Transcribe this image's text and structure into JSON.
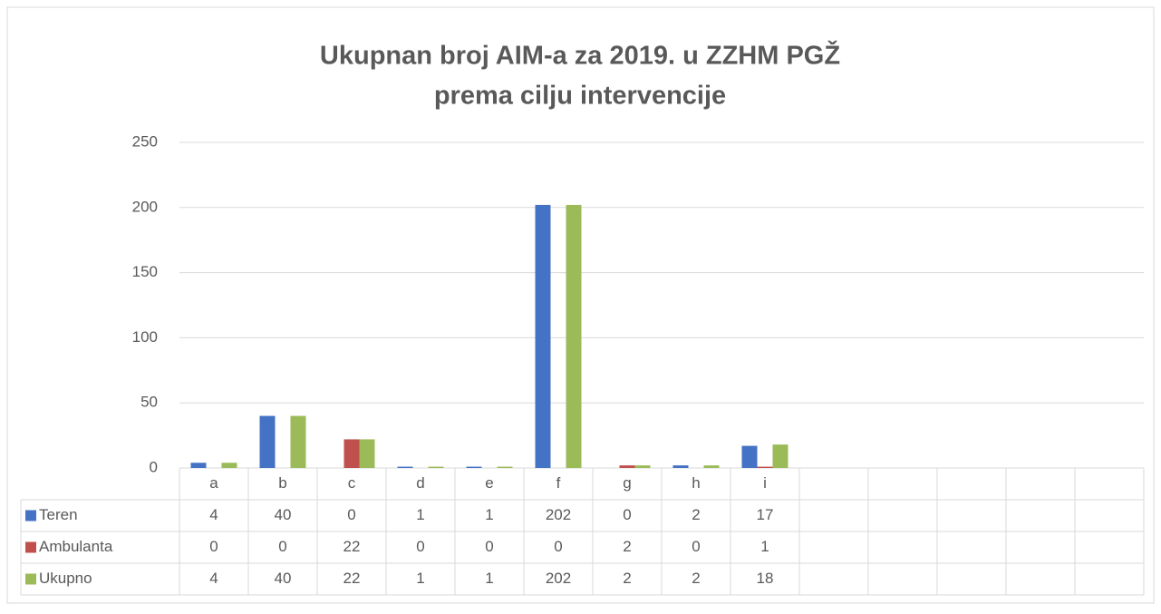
{
  "chart_data": {
    "type": "bar",
    "title": [
      "Ukupnan broj AIM-a za 2019. u ZZHM PGŽ",
      "prema cilju intervencije"
    ],
    "categories": [
      "a",
      "b",
      "c",
      "d",
      "e",
      "f",
      "g",
      "h",
      "i",
      null,
      null,
      null,
      null,
      null
    ],
    "series": [
      {
        "name": "Teren",
        "color": "#4472c4",
        "values": [
          4,
          40,
          0,
          1,
          1,
          202,
          0,
          2,
          17,
          null,
          null,
          null,
          null,
          null
        ]
      },
      {
        "name": "Ambulanta",
        "color": "#c0504d",
        "values": [
          0,
          0,
          22,
          0,
          0,
          0,
          2,
          0,
          1,
          null,
          null,
          null,
          null,
          null
        ]
      },
      {
        "name": "Ukupno",
        "color": "#9bbb59",
        "values": [
          4,
          40,
          22,
          1,
          1,
          202,
          2,
          2,
          18,
          null,
          null,
          null,
          null,
          null
        ]
      }
    ],
    "ylim": [
      0,
      250
    ],
    "yticks": [
      0,
      50,
      100,
      150,
      200,
      250
    ],
    "grid": true,
    "legend": "table"
  }
}
